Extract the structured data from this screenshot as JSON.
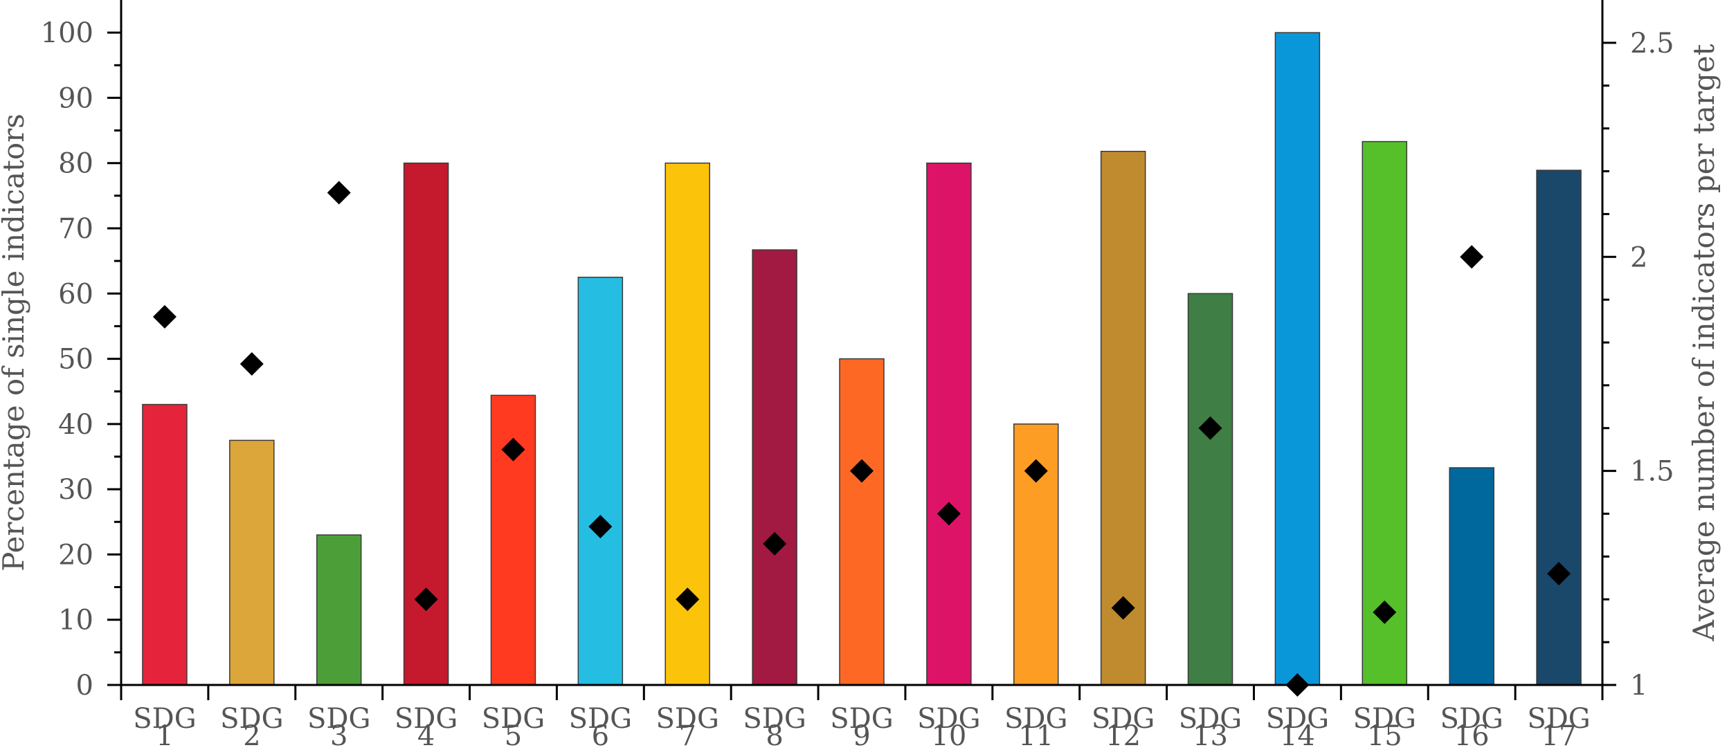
{
  "chart_data": {
    "type": "bar",
    "categories": [
      {
        "line1": "SDG",
        "line2": "1"
      },
      {
        "line1": "SDG",
        "line2": "2"
      },
      {
        "line1": "SDG",
        "line2": "3"
      },
      {
        "line1": "SDG",
        "line2": "4"
      },
      {
        "line1": "SDG",
        "line2": "5"
      },
      {
        "line1": "SDG",
        "line2": "6"
      },
      {
        "line1": "SDG",
        "line2": "7"
      },
      {
        "line1": "SDG",
        "line2": "8"
      },
      {
        "line1": "SDG",
        "line2": "9"
      },
      {
        "line1": "SDG",
        "line2": "10"
      },
      {
        "line1": "SDG",
        "line2": "11"
      },
      {
        "line1": "SDG",
        "line2": "12"
      },
      {
        "line1": "SDG",
        "line2": "13"
      },
      {
        "line1": "SDG",
        "line2": "14"
      },
      {
        "line1": "SDG",
        "line2": "15"
      },
      {
        "line1": "SDG",
        "line2": "16"
      },
      {
        "line1": "SDG",
        "line2": "17"
      }
    ],
    "bar_series": {
      "axis": "left",
      "values": [
        43,
        37.5,
        23,
        80,
        44.4,
        62.5,
        80,
        66.7,
        50,
        80,
        40,
        81.8,
        60,
        100,
        83.3,
        33.3,
        78.9
      ],
      "colors": [
        "#e5243b",
        "#dda63a",
        "#4c9f38",
        "#c5192d",
        "#ff3a21",
        "#26bde2",
        "#fcc30b",
        "#a21942",
        "#fd6925",
        "#dd1367",
        "#fd9d24",
        "#bf8b2e",
        "#3f7e44",
        "#0a97d9",
        "#56c02b",
        "#00689d",
        "#19486a"
      ]
    },
    "marker_series": {
      "axis": "right",
      "marker": "diamond",
      "color": "#000000",
      "values": [
        1.86,
        1.75,
        2.15,
        1.2,
        1.55,
        1.37,
        1.2,
        1.33,
        1.5,
        1.4,
        1.5,
        1.18,
        1.6,
        1.0,
        1.17,
        2.0,
        1.26
      ]
    },
    "y_left": {
      "label": "Percentage of single indicators",
      "range": [
        0,
        105
      ],
      "ticks": [
        "0",
        "10",
        "20",
        "30",
        "40",
        "50",
        "60",
        "70",
        "80",
        "90",
        "100"
      ],
      "tick_values": [
        0,
        10,
        20,
        30,
        40,
        50,
        60,
        70,
        80,
        90,
        100
      ]
    },
    "y_right": {
      "label": "Average number of indicators per target",
      "range": [
        1,
        2.6
      ],
      "ticks": [
        "1",
        "1.5",
        "2",
        "2.5"
      ],
      "tick_values": [
        1,
        1.5,
        2,
        2.5
      ]
    },
    "grid": false,
    "legend": "none"
  }
}
